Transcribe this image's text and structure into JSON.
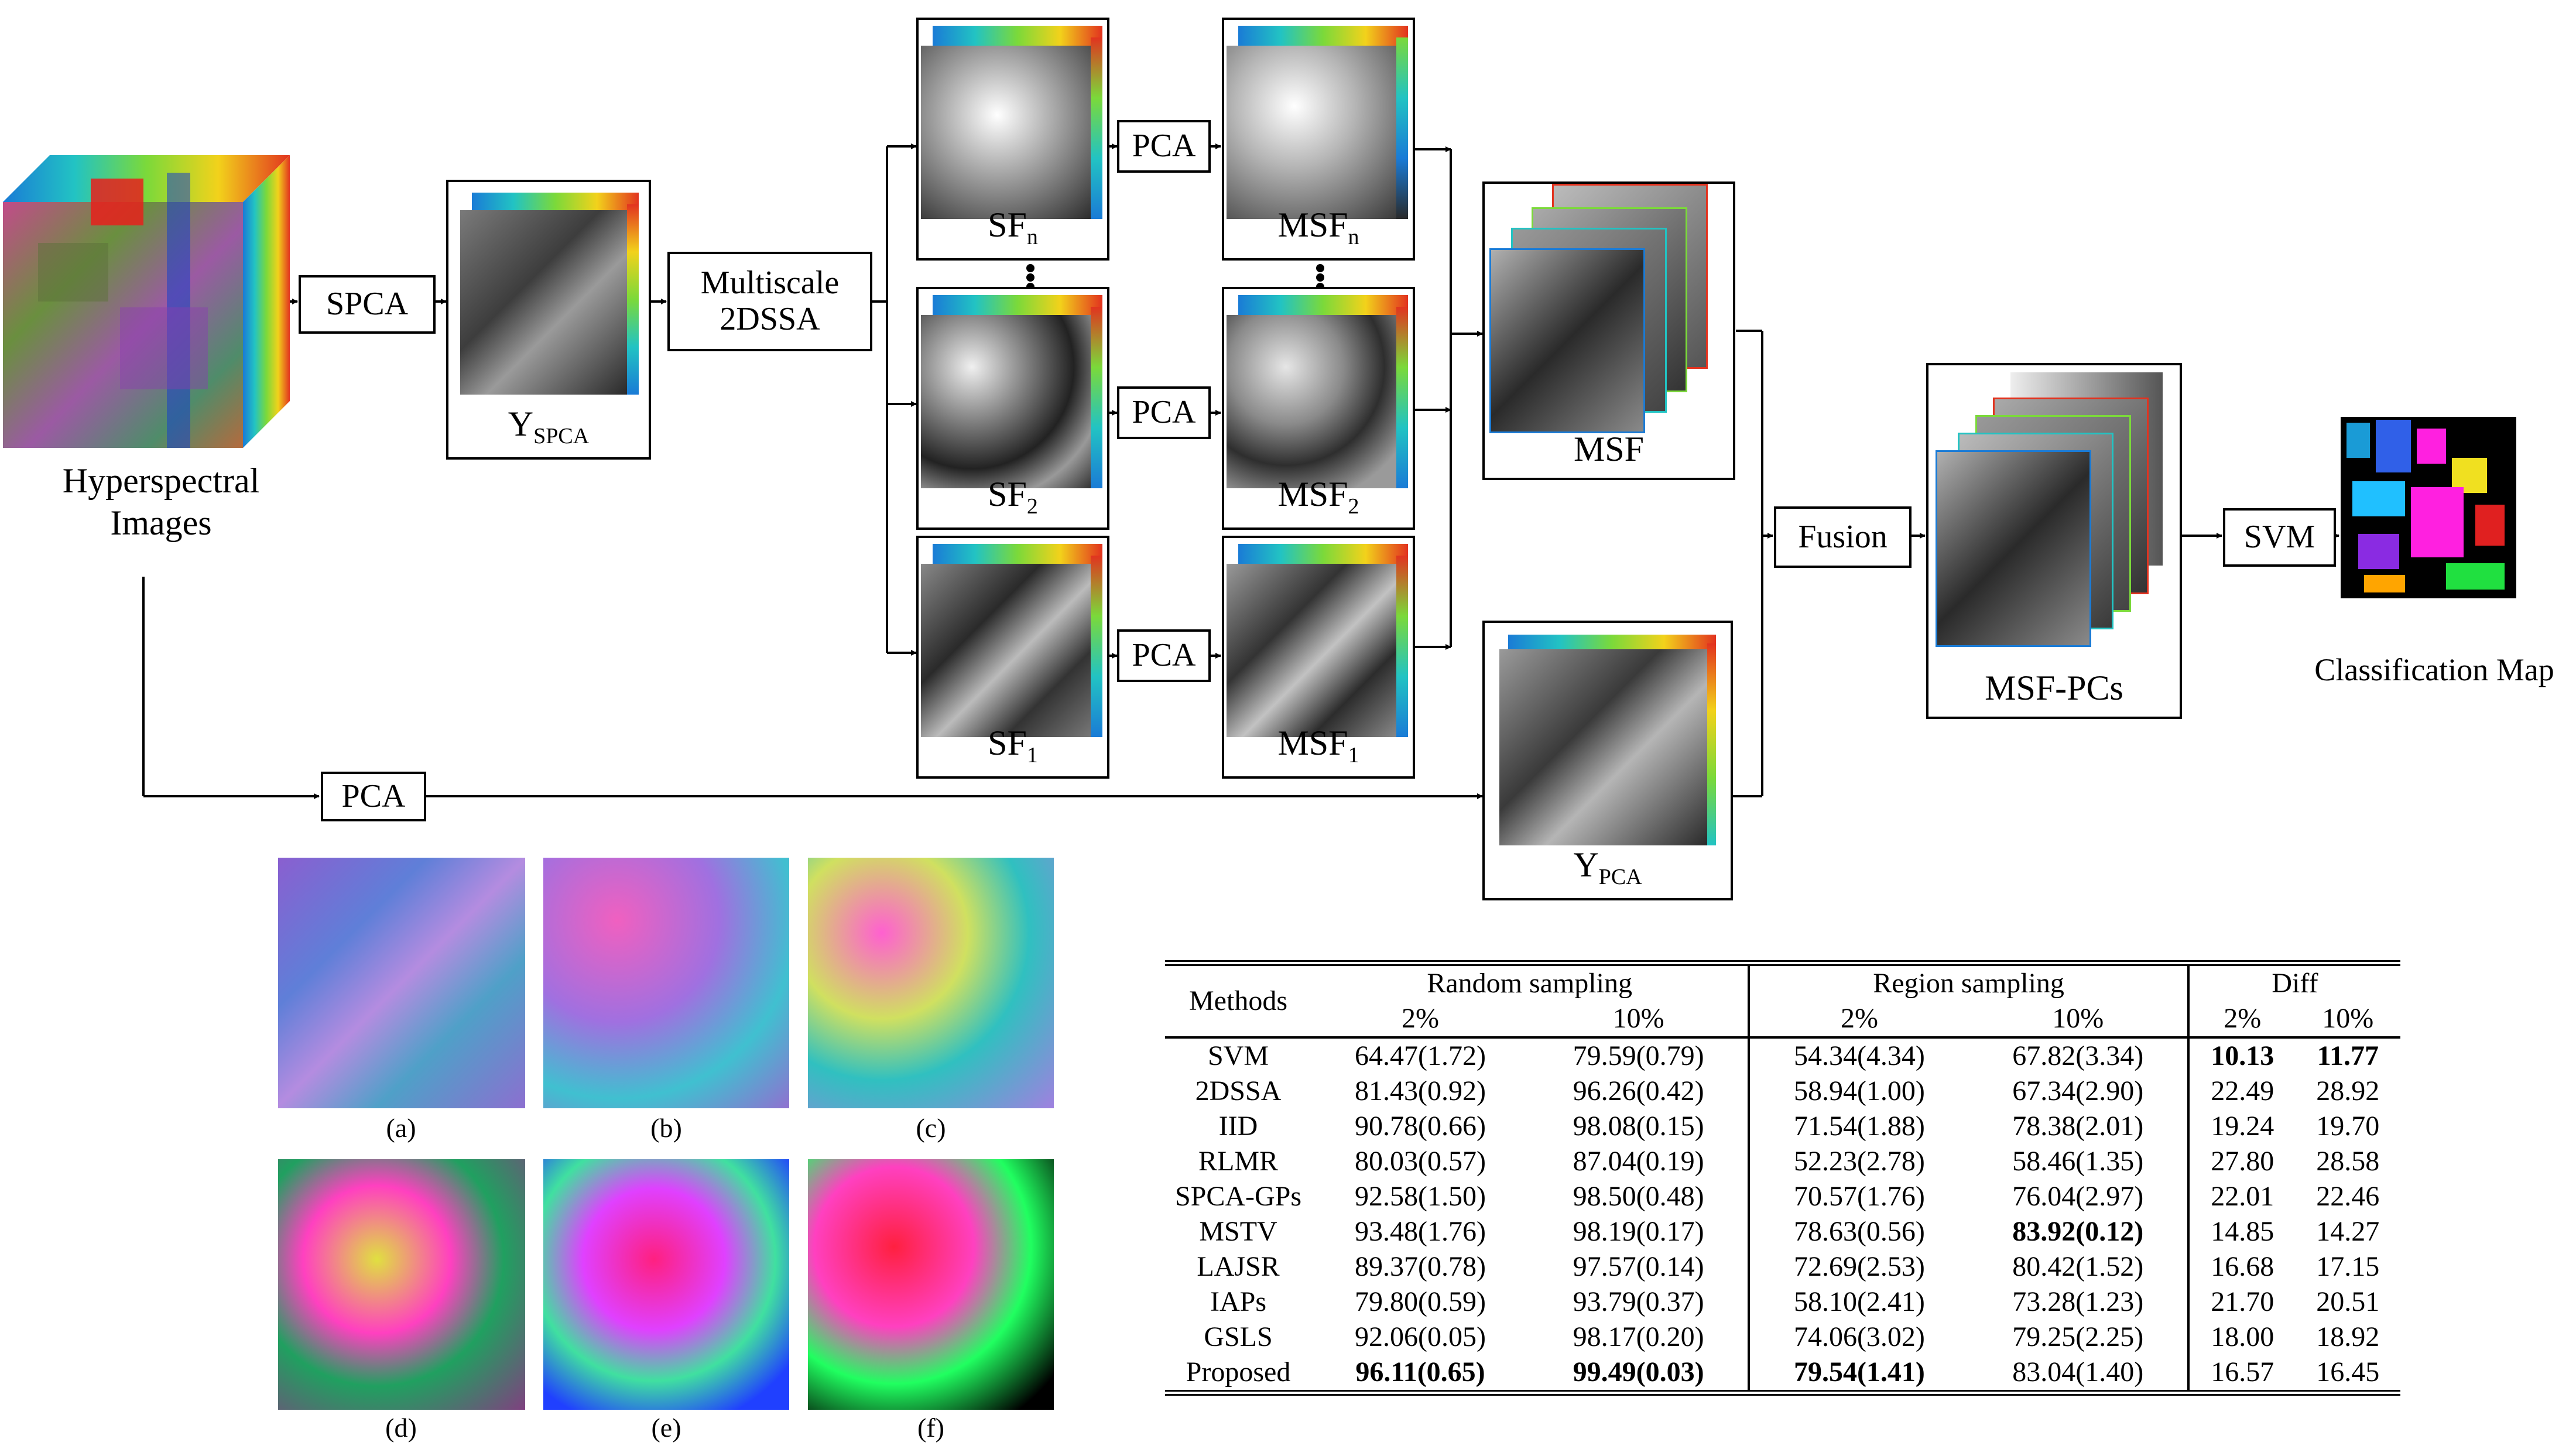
{
  "pipeline": {
    "hsi_label_line1": "Hyperspectral",
    "hsi_label_line2": "Images",
    "spca": "SPCA",
    "y_spca_main": "Y",
    "y_spca_sub": "SPCA",
    "multiscale_line1": "Multiscale",
    "multiscale_line2": "2DSSA",
    "sf_n_main": "SF",
    "sf_n_sub": "n",
    "sf_2_main": "SF",
    "sf_2_sub": "2",
    "sf_1_main": "SF",
    "sf_1_sub": "1",
    "pca": "PCA",
    "msf_n_main": "MSF",
    "msf_n_sub": "n",
    "msf_2_main": "MSF",
    "msf_2_sub": "2",
    "msf_1_main": "MSF",
    "msf_1_sub": "1",
    "msf": "MSF",
    "y_pca_main": "Y",
    "y_pca_sub": "PCA",
    "fusion": "Fusion",
    "msf_pcs": "MSF-PCs",
    "svm": "SVM",
    "classification_map": "Classification Map"
  },
  "panels": {
    "captions": [
      "(a)",
      "(b)",
      "(c)",
      "(d)",
      "(e)",
      "(f)"
    ]
  },
  "table": {
    "header_methods": "Methods",
    "header_random": "Random sampling",
    "header_region": "Region sampling",
    "header_diff": "Diff",
    "sub_headers": [
      "2%",
      "10%",
      "2%",
      "10%",
      "2%",
      "10%"
    ],
    "rows": [
      {
        "method": "SVM",
        "r2": "64.47(1.72)",
        "r10": "79.59(0.79)",
        "g2": "54.34(4.34)",
        "g10": "67.82(3.34)",
        "d2": "10.13",
        "d10": "11.77"
      },
      {
        "method": "2DSSA",
        "r2": "81.43(0.92)",
        "r10": "96.26(0.42)",
        "g2": "58.94(1.00)",
        "g10": "67.34(2.90)",
        "d2": "22.49",
        "d10": "28.92"
      },
      {
        "method": "IID",
        "r2": "90.78(0.66)",
        "r10": "98.08(0.15)",
        "g2": "71.54(1.88)",
        "g10": "78.38(2.01)",
        "d2": "19.24",
        "d10": "19.70"
      },
      {
        "method": "RLMR",
        "r2": "80.03(0.57)",
        "r10": "87.04(0.19)",
        "g2": "52.23(2.78)",
        "g10": "58.46(1.35)",
        "d2": "27.80",
        "d10": "28.58"
      },
      {
        "method": "SPCA-GPs",
        "r2": "92.58(1.50)",
        "r10": "98.50(0.48)",
        "g2": "70.57(1.76)",
        "g10": "76.04(2.97)",
        "d2": "22.01",
        "d10": "22.46"
      },
      {
        "method": "MSTV",
        "r2": "93.48(1.76)",
        "r10": "98.19(0.17)",
        "g2": "78.63(0.56)",
        "g10": "83.92(0.12)",
        "d2": "14.85",
        "d10": "14.27"
      },
      {
        "method": "LAJSR",
        "r2": "89.37(0.78)",
        "r10": "97.57(0.14)",
        "g2": "72.69(2.53)",
        "g10": "80.42(1.52)",
        "d2": "16.68",
        "d10": "17.15"
      },
      {
        "method": "IAPs",
        "r2": "79.80(0.59)",
        "r10": "93.79(0.37)",
        "g2": "58.10(2.41)",
        "g10": "73.28(1.23)",
        "d2": "21.70",
        "d10": "20.51"
      },
      {
        "method": "GSLS",
        "r2": "92.06(0.05)",
        "r10": "98.17(0.20)",
        "g2": "74.06(3.02)",
        "g10": "79.25(2.25)",
        "d2": "18.00",
        "d10": "18.92"
      },
      {
        "method": "Proposed",
        "r2": "96.11(0.65)",
        "r10": "99.49(0.03)",
        "g2": "79.54(1.41)",
        "g10": "83.04(1.40)",
        "d2": "16.57",
        "d10": "16.45"
      }
    ]
  }
}
